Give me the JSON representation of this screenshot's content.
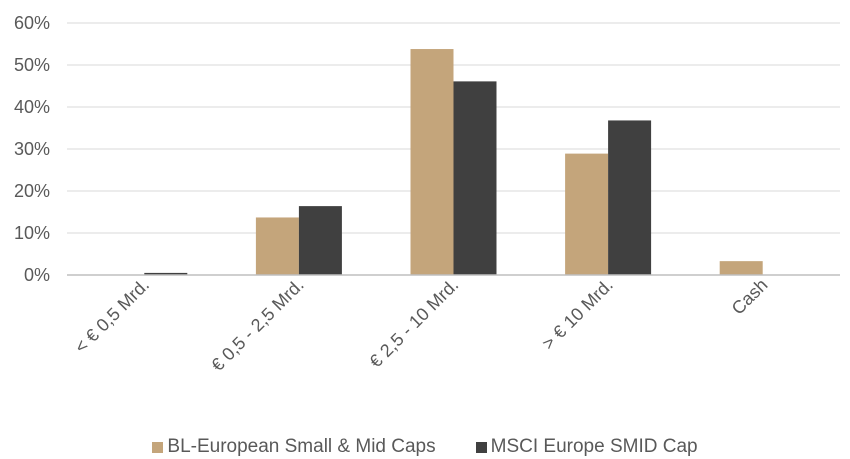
{
  "chart_data": {
    "type": "bar",
    "title": "",
    "xlabel": "",
    "ylabel": "",
    "categories": [
      "< € 0,5 Mrd.",
      "€ 0,5 - 2,5 Mrd.",
      "€ 2,5 - 10 Mrd.",
      "> € 10 Mrd.",
      "Cash"
    ],
    "series": [
      {
        "name": "BL-European Small & Mid Caps",
        "values": [
          0,
          13.7,
          53.8,
          28.9,
          3.3
        ],
        "color": "#c4a57b"
      },
      {
        "name": "MSCI Europe SMID Cap",
        "values": [
          0.5,
          16.4,
          46.1,
          36.8,
          0
        ],
        "color": "#404040"
      }
    ],
    "ylim": [
      0,
      60
    ],
    "yticks": [
      "0%",
      "10%",
      "20%",
      "30%",
      "40%",
      "50%",
      "60%"
    ],
    "grid": true,
    "legend_position": "bottom"
  }
}
